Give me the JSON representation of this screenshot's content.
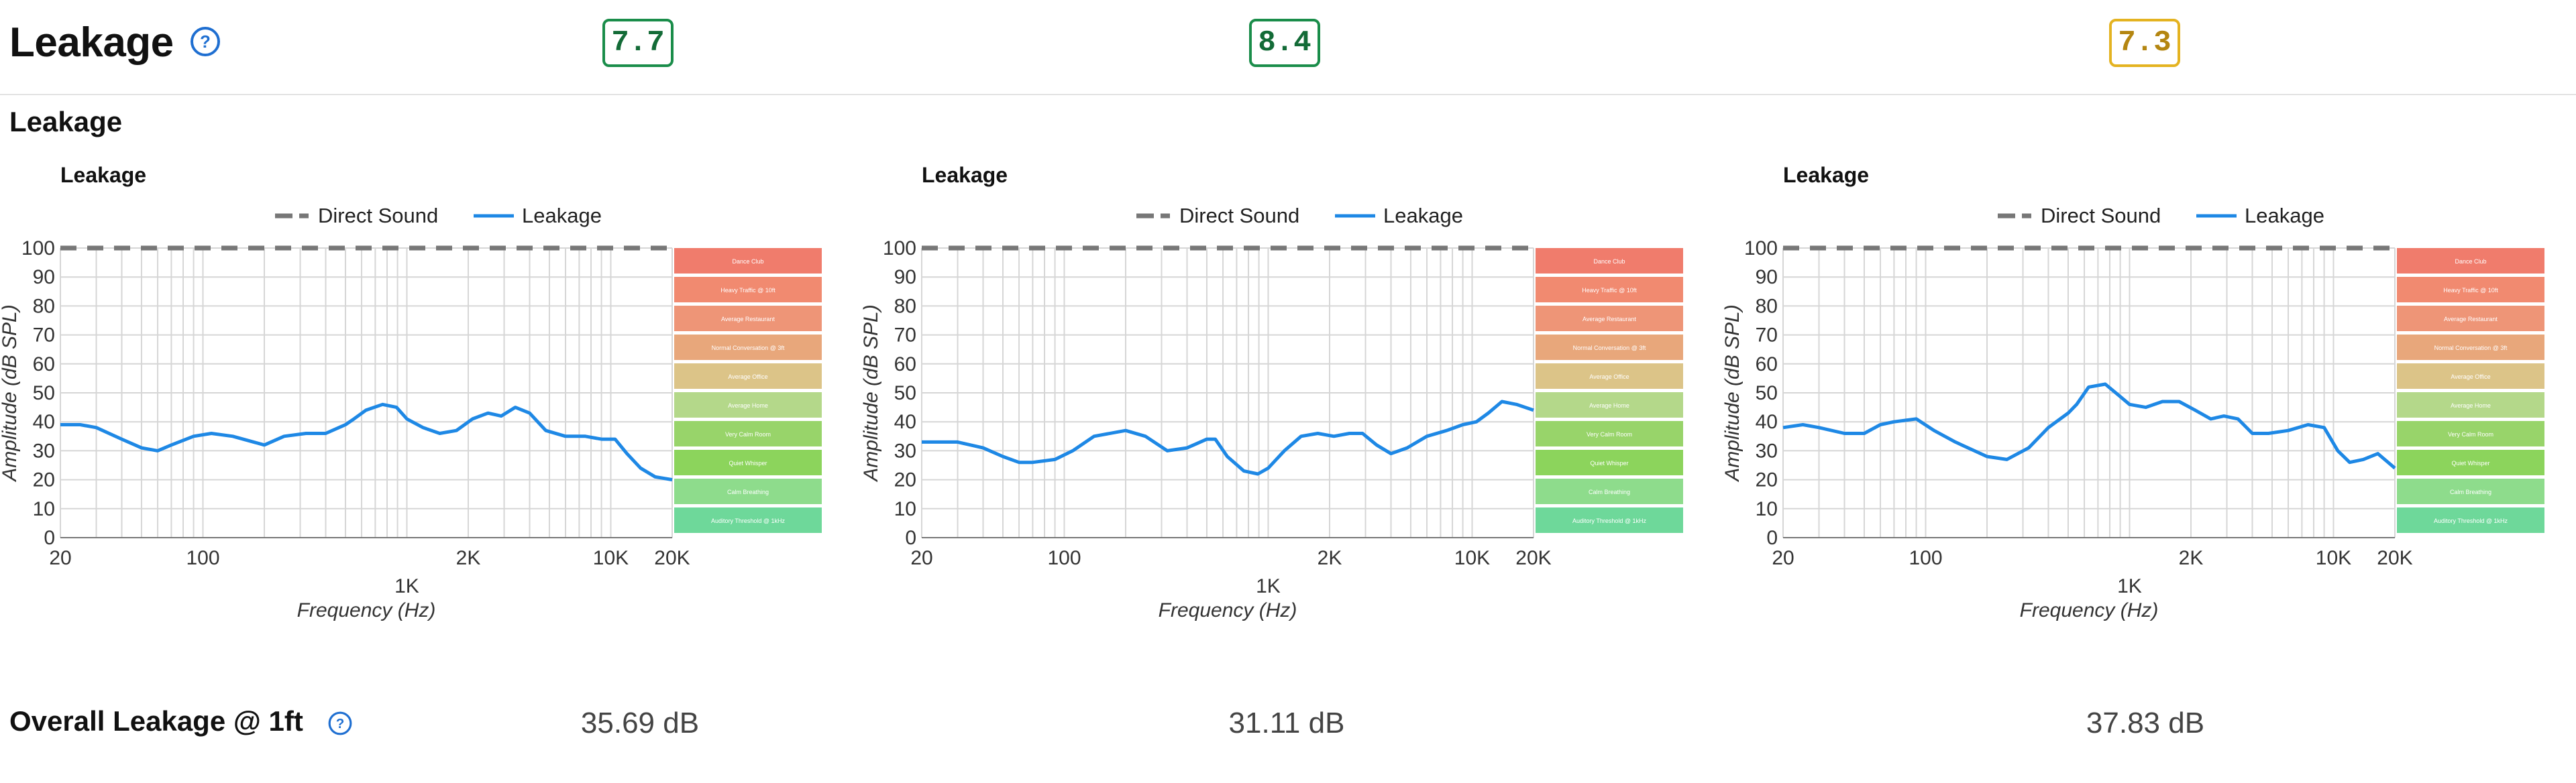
{
  "header": {
    "title": "Leakage"
  },
  "scores": [
    {
      "value": "7.7",
      "status": "good",
      "border": "#1a8d4a"
    },
    {
      "value": "8.4",
      "status": "good",
      "border": "#1a8d4a"
    },
    {
      "value": "7.3",
      "status": "warn",
      "border": "#e4b321"
    }
  ],
  "subsection": {
    "title": "Leakage"
  },
  "overall": {
    "label": "Overall Leakage @ 1ft",
    "values": [
      "35.69 dB",
      "31.11 dB",
      "37.83 dB"
    ]
  },
  "chart_data": [
    {
      "type": "line",
      "title": "Leakage",
      "xlabel": "Frequency (Hz)",
      "ylabel": "Amplitude (dB SPL)",
      "xscale": "log",
      "xlim": [
        20,
        20000
      ],
      "ylim": [
        0,
        100
      ],
      "xticks": [
        {
          "v": 20,
          "t": "20"
        },
        {
          "v": 100,
          "t": "100"
        },
        {
          "v": 1000,
          "t": "1K"
        },
        {
          "v": 2000,
          "t": "2K"
        },
        {
          "v": 10000,
          "t": "10K"
        },
        {
          "v": 20000,
          "t": "20K"
        }
      ],
      "yticks": [
        0,
        10,
        20,
        30,
        40,
        50,
        60,
        70,
        80,
        90,
        100
      ],
      "legend": [
        "Direct Sound",
        "Leakage"
      ],
      "legend_position": "top",
      "grid": true,
      "series": [
        {
          "name": "Direct Sound",
          "style": "dashed",
          "color": "#777777",
          "x": [
            20,
            20000
          ],
          "y": [
            100,
            100
          ]
        },
        {
          "name": "Leakage",
          "style": "solid",
          "color": "#1e88e5",
          "x": [
            20,
            25,
            30,
            40,
            50,
            60,
            70,
            90,
            110,
            140,
            200,
            250,
            320,
            400,
            500,
            550,
            630,
            760,
            890,
            1000,
            1200,
            1450,
            1750,
            2100,
            2500,
            2900,
            3400,
            4000,
            4800,
            6000,
            7500,
            9000,
            10500,
            12000,
            14000,
            16500,
            20000
          ],
          "y": [
            39,
            39,
            38,
            34,
            31,
            30,
            32,
            35,
            36,
            35,
            32,
            35,
            36,
            36,
            39,
            41,
            44,
            46,
            45,
            41,
            38,
            36,
            37,
            41,
            43,
            42,
            45,
            43,
            37,
            35,
            35,
            34,
            34,
            29,
            24,
            21,
            20
          ]
        }
      ]
    },
    {
      "type": "line",
      "title": "Leakage",
      "xlabel": "Frequency (Hz)",
      "ylabel": "Amplitude (dB SPL)",
      "xscale": "log",
      "xlim": [
        20,
        20000
      ],
      "ylim": [
        0,
        100
      ],
      "xticks": [
        {
          "v": 20,
          "t": "20"
        },
        {
          "v": 100,
          "t": "100"
        },
        {
          "v": 1000,
          "t": "1K"
        },
        {
          "v": 2000,
          "t": "2K"
        },
        {
          "v": 10000,
          "t": "10K"
        },
        {
          "v": 20000,
          "t": "20K"
        }
      ],
      "yticks": [
        0,
        10,
        20,
        30,
        40,
        50,
        60,
        70,
        80,
        90,
        100
      ],
      "legend": [
        "Direct Sound",
        "Leakage"
      ],
      "legend_position": "top",
      "grid": true,
      "series": [
        {
          "name": "Direct Sound",
          "style": "dashed",
          "color": "#777777",
          "x": [
            20,
            20000
          ],
          "y": [
            100,
            100
          ]
        },
        {
          "name": "Leakage",
          "style": "solid",
          "color": "#1e88e5",
          "x": [
            20,
            25,
            30,
            40,
            50,
            60,
            70,
            90,
            110,
            140,
            200,
            250,
            320,
            400,
            500,
            550,
            630,
            760,
            890,
            1000,
            1200,
            1450,
            1750,
            2100,
            2500,
            2900,
            3400,
            4000,
            4800,
            6000,
            7500,
            9000,
            10500,
            12000,
            14000,
            16500,
            20000
          ],
          "y": [
            33,
            33,
            33,
            31,
            28,
            26,
            26,
            27,
            30,
            35,
            37,
            35,
            30,
            31,
            34,
            34,
            28,
            23,
            22,
            24,
            30,
            35,
            36,
            35,
            36,
            36,
            32,
            29,
            31,
            35,
            37,
            39,
            40,
            43,
            47,
            46,
            44
          ]
        }
      ]
    },
    {
      "type": "line",
      "title": "Leakage",
      "xlabel": "Frequency (Hz)",
      "ylabel": "Amplitude (dB SPL)",
      "xscale": "log",
      "xlim": [
        20,
        20000
      ],
      "ylim": [
        0,
        100
      ],
      "xticks": [
        {
          "v": 20,
          "t": "20"
        },
        {
          "v": 100,
          "t": "100"
        },
        {
          "v": 1000,
          "t": "1K"
        },
        {
          "v": 2000,
          "t": "2K"
        },
        {
          "v": 10000,
          "t": "10K"
        },
        {
          "v": 20000,
          "t": "20K"
        }
      ],
      "yticks": [
        0,
        10,
        20,
        30,
        40,
        50,
        60,
        70,
        80,
        90,
        100
      ],
      "legend": [
        "Direct Sound",
        "Leakage"
      ],
      "legend_position": "top",
      "grid": true,
      "series": [
        {
          "name": "Direct Sound",
          "style": "dashed",
          "color": "#777777",
          "x": [
            20,
            20000
          ],
          "y": [
            100,
            100
          ]
        },
        {
          "name": "Leakage",
          "style": "solid",
          "color": "#1e88e5",
          "x": [
            20,
            25,
            30,
            40,
            50,
            60,
            70,
            90,
            110,
            140,
            200,
            250,
            320,
            400,
            500,
            550,
            630,
            760,
            890,
            1000,
            1200,
            1450,
            1750,
            2100,
            2500,
            2900,
            3400,
            4000,
            4800,
            6000,
            7500,
            9000,
            10500,
            12000,
            14000,
            16500,
            20000
          ],
          "y": [
            38,
            39,
            38,
            36,
            36,
            39,
            40,
            41,
            37,
            33,
            28,
            27,
            31,
            38,
            43,
            46,
            52,
            53,
            49,
            46,
            45,
            47,
            47,
            44,
            41,
            42,
            41,
            36,
            36,
            37,
            39,
            38,
            30,
            26,
            27,
            29,
            24
          ]
        }
      ]
    }
  ],
  "reference_bands": [
    {
      "label": "Dance Club",
      "color": "#f07c6c"
    },
    {
      "label": "Heavy Traffic @ 10ft",
      "color": "#f18a70"
    },
    {
      "label": "Average Restaurant",
      "color": "#ee9577"
    },
    {
      "label": "Normal Conversation @ 3ft",
      "color": "#e8a77b"
    },
    {
      "label": "Average Office",
      "color": "#dcc488"
    },
    {
      "label": "Average Home",
      "color": "#b4d88a"
    },
    {
      "label": "Very Calm Room",
      "color": "#98d46a"
    },
    {
      "label": "Quiet Whisper",
      "color": "#8cd45c"
    },
    {
      "label": "Calm Breathing",
      "color": "#8edc8c"
    },
    {
      "label": "Auditory Threshold @ 1kHz",
      "color": "#6ed89a"
    }
  ]
}
